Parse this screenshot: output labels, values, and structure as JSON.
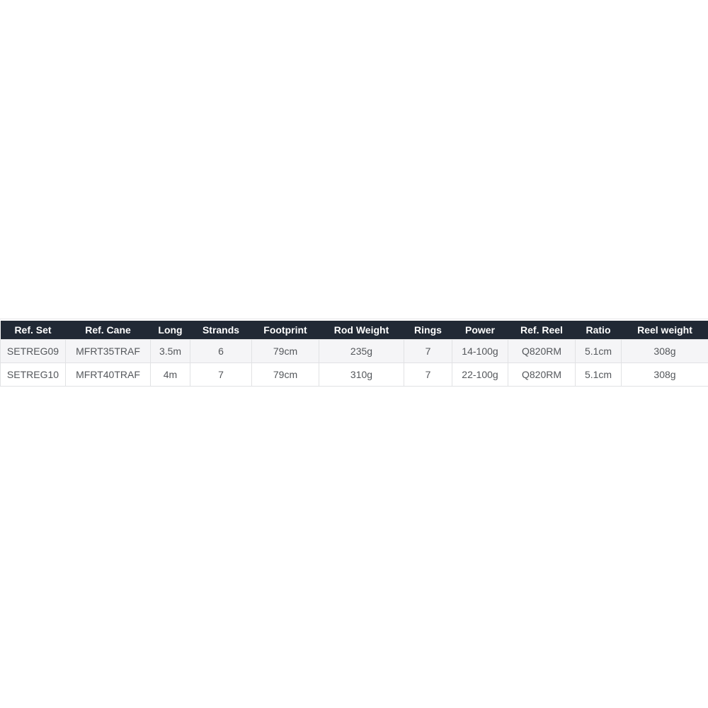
{
  "table": {
    "columns": [
      "Ref. Set",
      "Ref. Cane",
      "Long",
      "Strands",
      "Footprint",
      "Rod Weight",
      "Rings",
      "Power",
      "Ref. Reel",
      "Ratio",
      "Reel weight"
    ],
    "rows": [
      [
        "SETREG09",
        "MFRT35TRAF",
        "3.5m",
        "6",
        "79cm",
        "235g",
        "7",
        "14-100g",
        "Q820RM",
        "5.1cm",
        "308g"
      ],
      [
        "SETREG10",
        "MFRT40TRAF",
        "4m",
        "7",
        "79cm",
        "310g",
        "7",
        "22-100g",
        "Q820RM",
        "5.1cm",
        "308g"
      ]
    ],
    "colors": {
      "header_bg": "#212935",
      "header_text": "#ffffff",
      "row_odd_bg": "#f5f5f7",
      "row_even_bg": "#ffffff",
      "cell_border": "#e1e2e4",
      "cell_text": "#54575b"
    }
  }
}
